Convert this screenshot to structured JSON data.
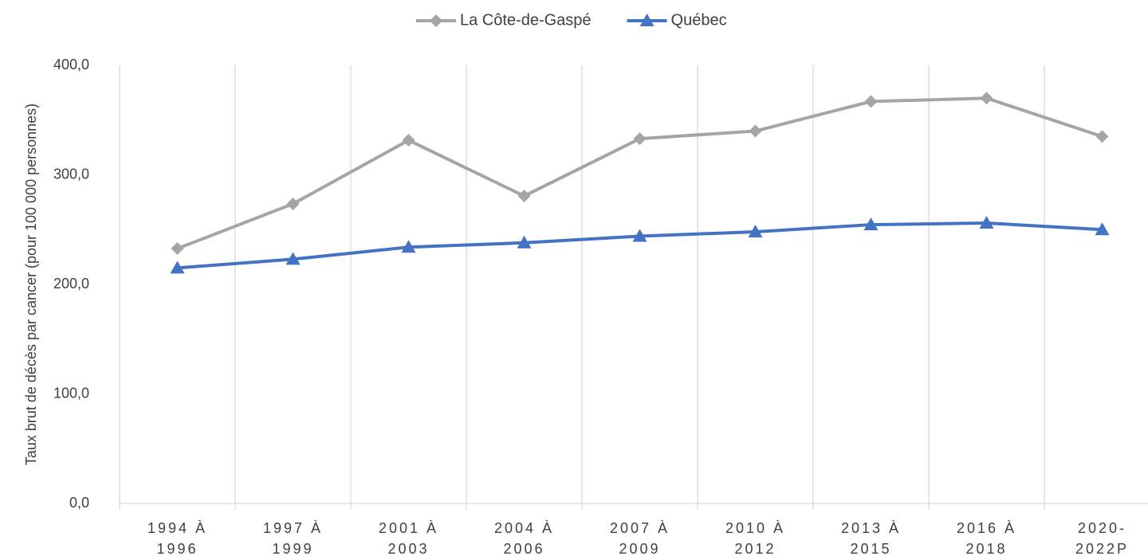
{
  "chart_data": {
    "type": "line",
    "y_label": "Taux brut de décès par cancer (pour 100 000 personnes)",
    "categories": [
      "1994 À 1996",
      "1997 À 1999",
      "2001 À 2003",
      "2004 À 2006",
      "2007 À 2009",
      "2010 À 2012",
      "2013 À 2015",
      "2016 À 2018",
      "2020-2022P"
    ],
    "series": [
      {
        "name": "La Côte-de-Gaspé",
        "color": "#a5a5a5",
        "marker": "diamond",
        "values": [
          232.7,
          273.5,
          331.6,
          280.7,
          333,
          340,
          367,
          370,
          335
        ]
      },
      {
        "name": "Québec",
        "color": "#4472c4",
        "marker": "triangle",
        "values": [
          215,
          223,
          234,
          238,
          244,
          248,
          254.5,
          256,
          250
        ]
      }
    ],
    "ylim": [
      0,
      400
    ],
    "yticks": [
      {
        "value": 0,
        "label": "0,0"
      },
      {
        "value": 100,
        "label": "100,0"
      },
      {
        "value": 200,
        "label": "200,0"
      },
      {
        "value": 300,
        "label": "300,0"
      },
      {
        "value": 400,
        "label": "400,0"
      }
    ],
    "grid": "vertical",
    "legend": "top"
  }
}
